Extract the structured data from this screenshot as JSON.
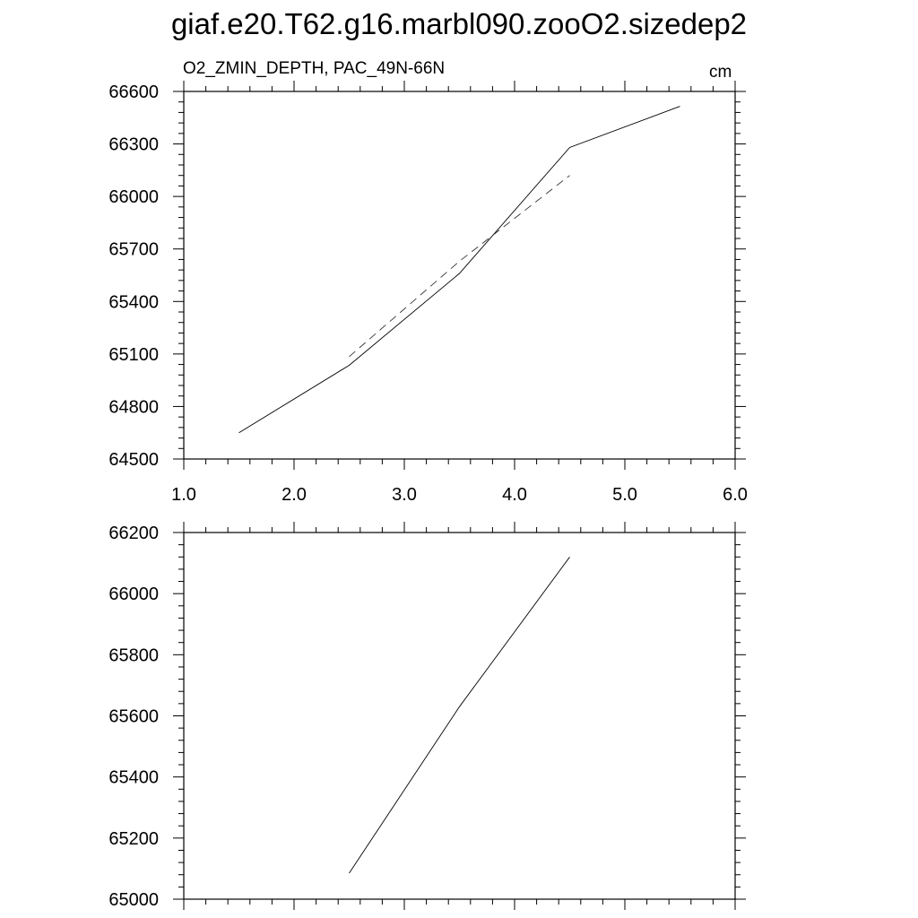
{
  "title": "giaf.e20.T62.g16.marbl090.zooO2.sizedep2",
  "subtitle": "O2_ZMIN_DEPTH, PAC_49N-66N",
  "units": "cm",
  "chart_data": [
    {
      "type": "line",
      "title": "O2_ZMIN_DEPTH, PAC_49N-66N",
      "units": "cm",
      "xlim": [
        1.0,
        6.0
      ],
      "ylim": [
        64500,
        66600
      ],
      "x_ticks": [
        "1.0",
        "2.0",
        "3.0",
        "4.0",
        "5.0",
        "6.0"
      ],
      "y_ticks": [
        "64500",
        "64800",
        "65100",
        "65400",
        "65700",
        "66000",
        "66300",
        "66600"
      ],
      "grid": false,
      "series": [
        {
          "style": "solid",
          "x": [
            1.5,
            2.5,
            3.5,
            4.5,
            5.5
          ],
          "y": [
            64650,
            65035,
            65560,
            66280,
            66515
          ]
        },
        {
          "style": "dashed",
          "x": [
            2.5,
            3.5,
            4.5
          ],
          "y": [
            65085,
            65630,
            66120
          ]
        }
      ]
    },
    {
      "type": "line",
      "xlim": [
        1.0,
        6.0
      ],
      "ylim": [
        65000,
        66200
      ],
      "y_ticks": [
        "65000",
        "65200",
        "65400",
        "65600",
        "65800",
        "66000",
        "66200"
      ],
      "grid": false,
      "series": [
        {
          "style": "solid",
          "x": [
            2.5,
            3.5,
            4.5
          ],
          "y": [
            65085,
            65630,
            66120
          ]
        }
      ]
    }
  ]
}
